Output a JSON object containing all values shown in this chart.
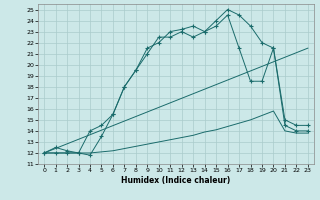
{
  "xlabel": "Humidex (Indice chaleur)",
  "background_color": "#cce8e8",
  "line_color": "#1a6b6b",
  "grid_color": "#aacccc",
  "xlim": [
    -0.5,
    23.5
  ],
  "ylim": [
    11,
    25.5
  ],
  "xticks": [
    0,
    1,
    2,
    3,
    4,
    5,
    6,
    7,
    8,
    9,
    10,
    11,
    12,
    13,
    14,
    15,
    16,
    17,
    18,
    19,
    20,
    21,
    22,
    23
  ],
  "yticks": [
    11,
    12,
    13,
    14,
    15,
    16,
    17,
    18,
    19,
    20,
    21,
    22,
    23,
    24,
    25
  ],
  "lines": [
    {
      "x": [
        0,
        1,
        2,
        3,
        4,
        5,
        6,
        7,
        8,
        9,
        10,
        11,
        12,
        13,
        14,
        15,
        16,
        17,
        18,
        19,
        20,
        21,
        22,
        23
      ],
      "y": [
        12,
        12.5,
        12.2,
        12,
        11.8,
        13.5,
        15.5,
        18,
        19.5,
        21.5,
        22,
        23,
        23.2,
        23.5,
        23,
        24,
        25,
        24.5,
        23.5,
        22,
        21.5,
        14.5,
        14,
        14
      ],
      "marker": true
    },
    {
      "x": [
        0,
        1,
        2,
        3,
        4,
        5,
        6,
        7,
        8,
        9,
        10,
        11,
        12,
        13,
        14,
        15,
        16,
        17,
        18,
        19,
        20,
        21,
        22,
        23
      ],
      "y": [
        12,
        12,
        12,
        12,
        12,
        12.1,
        12.2,
        12.4,
        12.6,
        12.8,
        13.0,
        13.2,
        13.4,
        13.6,
        13.9,
        14.1,
        14.4,
        14.7,
        15.0,
        15.4,
        15.8,
        14,
        13.8,
        13.8
      ],
      "marker": false
    },
    {
      "x": [
        0,
        1,
        2,
        3,
        4,
        5,
        6,
        7,
        8,
        9,
        10,
        11,
        12,
        13,
        14,
        15,
        16,
        17,
        18,
        19,
        20,
        21,
        22,
        23
      ],
      "y": [
        12,
        12,
        12,
        12,
        14,
        14.5,
        15.5,
        18,
        19.5,
        21,
        22.5,
        22.5,
        23,
        22.5,
        23,
        23.5,
        24.5,
        21.5,
        18.5,
        18.5,
        21.5,
        15,
        14.5,
        14.5
      ],
      "marker": true
    },
    {
      "x": [
        0,
        23
      ],
      "y": [
        12,
        21.5
      ],
      "marker": false
    }
  ]
}
